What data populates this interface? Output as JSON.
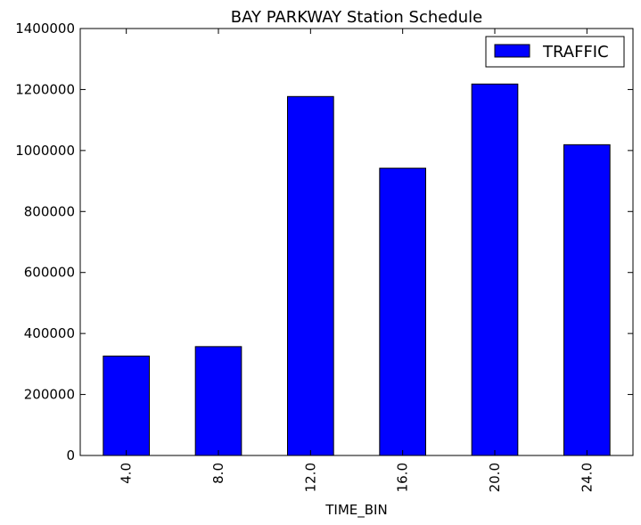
{
  "chart_data": {
    "type": "bar",
    "title": "BAY PARKWAY Station Schedule",
    "xlabel": "TIME_BIN",
    "ylabel": "",
    "categories": [
      "4.0",
      "8.0",
      "12.0",
      "16.0",
      "20.0",
      "24.0"
    ],
    "series": [
      {
        "name": "TRAFFIC",
        "color": "#0000ff",
        "values": [
          326000,
          357000,
          1177000,
          942000,
          1218000,
          1019000
        ]
      }
    ],
    "ylim": [
      0,
      1400000
    ],
    "yticks": [
      "0",
      "200000",
      "400000",
      "600000",
      "800000",
      "1000000",
      "1200000",
      "1400000"
    ],
    "ytick_values": [
      0,
      200000,
      400000,
      600000,
      800000,
      1000000,
      1200000,
      1400000
    ],
    "grid": false,
    "legend_position": "top-right"
  }
}
